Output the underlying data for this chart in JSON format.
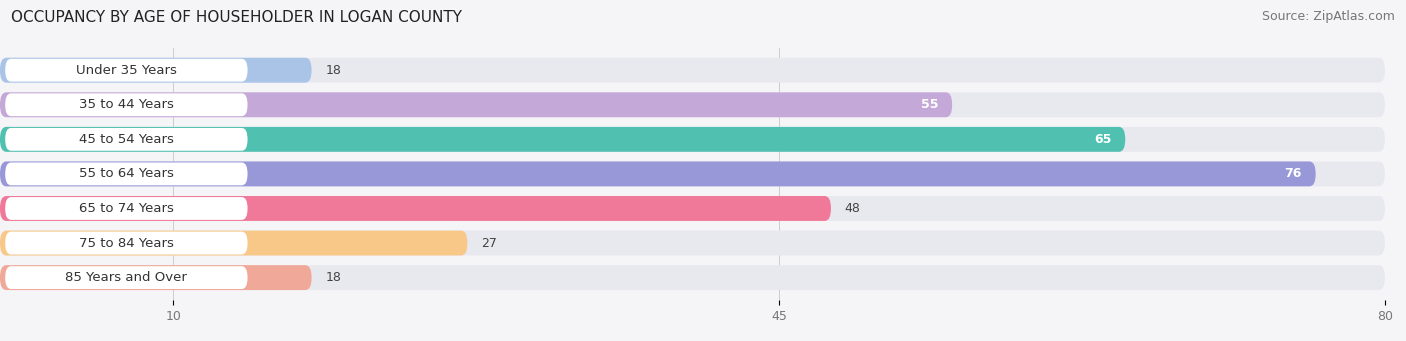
{
  "title": "OCCUPANCY BY AGE OF HOUSEHOLDER IN LOGAN COUNTY",
  "source": "Source: ZipAtlas.com",
  "categories": [
    "Under 35 Years",
    "35 to 44 Years",
    "45 to 54 Years",
    "55 to 64 Years",
    "65 to 74 Years",
    "75 to 84 Years",
    "85 Years and Over"
  ],
  "values": [
    18,
    55,
    65,
    76,
    48,
    27,
    18
  ],
  "bar_colors": [
    "#aac4e8",
    "#c4a8d8",
    "#50c0b0",
    "#9898d8",
    "#f07898",
    "#f8c888",
    "#f0a898"
  ],
  "bar_bg_color": "#e8e8ef",
  "label_bg_color": "#ffffff",
  "xlim": [
    0,
    80
  ],
  "xticks": [
    10,
    45,
    80
  ],
  "title_fontsize": 11,
  "source_fontsize": 9,
  "label_fontsize": 9.5,
  "value_fontsize": 9,
  "background_color": "#f5f5f8"
}
